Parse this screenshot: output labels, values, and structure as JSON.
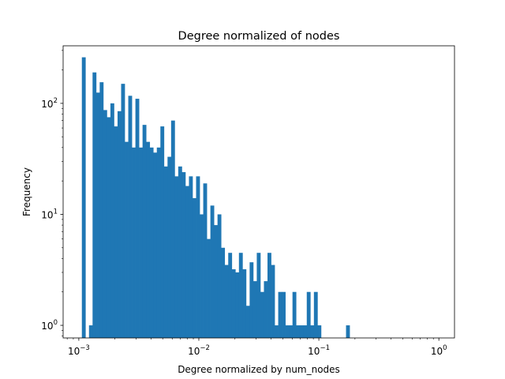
{
  "chart_data": {
    "type": "bar",
    "title": "Degree normalized of nodes",
    "xlabel": "Degree normalized by num_nodes",
    "ylabel": "Frequency",
    "x_scale": "log",
    "y_scale": "log",
    "xlim": [
      0.00074,
      1.35
    ],
    "ylim": [
      0.77,
      330
    ],
    "grid": false,
    "legend": "none",
    "bar_color": "#1f77b4",
    "x_ticks": [
      {
        "value": 0.001,
        "base": "10",
        "exp": "−3"
      },
      {
        "value": 0.01,
        "base": "10",
        "exp": "−2"
      },
      {
        "value": 0.1,
        "base": "10",
        "exp": "−1"
      },
      {
        "value": 1,
        "base": "10",
        "exp": "0"
      }
    ],
    "y_ticks": [
      {
        "value": 1,
        "base": "10",
        "exp": "0"
      },
      {
        "value": 10,
        "base": "10",
        "exp": "1"
      },
      {
        "value": 100,
        "base": "10",
        "exp": "2"
      }
    ],
    "bins": {
      "start": 0.00106,
      "end": 1.0,
      "count": 100
    },
    "frequencies": [
      260,
      0,
      1,
      190,
      125,
      155,
      87,
      75,
      100,
      62,
      85,
      150,
      45,
      117,
      40,
      110,
      40,
      64,
      45,
      40,
      36,
      40,
      62,
      27,
      33,
      70,
      22,
      27,
      24,
      18,
      22,
      14,
      22,
      10,
      19,
      6,
      12,
      8,
      10,
      5,
      3.5,
      4.5,
      3.2,
      3.0,
      4.5,
      3.2,
      1.5,
      3.7,
      2.5,
      4.5,
      2.0,
      2.5,
      4.5,
      3.5,
      1.0,
      2.0,
      2.0,
      1.0,
      1.0,
      2.0,
      1.0,
      1.0,
      1.0,
      2.0,
      1.0,
      2.0,
      1.0,
      0,
      0,
      0,
      0,
      0,
      0,
      0,
      1.0,
      0,
      0,
      0,
      0,
      0,
      0,
      0,
      0,
      0,
      0,
      0,
      0,
      0,
      0,
      0,
      0,
      0,
      0,
      0,
      0,
      0,
      0,
      0,
      0,
      0
    ]
  }
}
